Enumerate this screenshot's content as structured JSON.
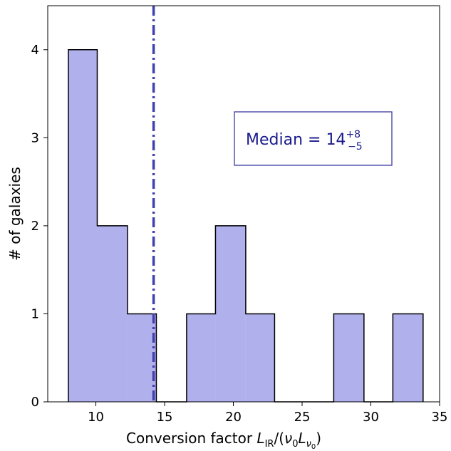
{
  "chart_data": {
    "type": "histogram",
    "bins": [
      {
        "left": 8.0,
        "right": 10.1,
        "count": 4
      },
      {
        "left": 10.1,
        "right": 12.3,
        "count": 2
      },
      {
        "left": 12.3,
        "right": 14.4,
        "count": 1
      },
      {
        "left": 14.4,
        "right": 16.6,
        "count": 0
      },
      {
        "left": 16.6,
        "right": 18.7,
        "count": 1
      },
      {
        "left": 18.7,
        "right": 20.9,
        "count": 2
      },
      {
        "left": 20.9,
        "right": 23.0,
        "count": 1
      },
      {
        "left": 23.0,
        "right": 25.2,
        "count": 0
      },
      {
        "left": 25.2,
        "right": 27.3,
        "count": 0
      },
      {
        "left": 27.3,
        "right": 29.5,
        "count": 1
      },
      {
        "left": 29.5,
        "right": 31.6,
        "count": 0
      },
      {
        "left": 31.6,
        "right": 33.8,
        "count": 1
      }
    ],
    "median_line": 14.2,
    "xlim": [
      6.5,
      35
    ],
    "ylim": [
      0,
      4.5
    ],
    "xticks": [
      10,
      15,
      20,
      25,
      30,
      35
    ],
    "yticks": [
      0,
      1,
      2,
      3,
      4
    ],
    "ylabel": "# of galaxies",
    "xlabel_prefix": "Conversion factor ",
    "xlabel_math": {
      "L": "L",
      "IR": "IR",
      "nu": "ν",
      "zero": "0"
    },
    "annotation": {
      "prefix": "Median = 14",
      "sup": "+8",
      "sub": "−5"
    },
    "colors": {
      "bar_fill": "#b0b0ec",
      "bar_edge": "#000000",
      "median_line": "#4040b0",
      "annotation_text": "#1a1a8c",
      "annotation_border": "#3a3aa0"
    }
  }
}
